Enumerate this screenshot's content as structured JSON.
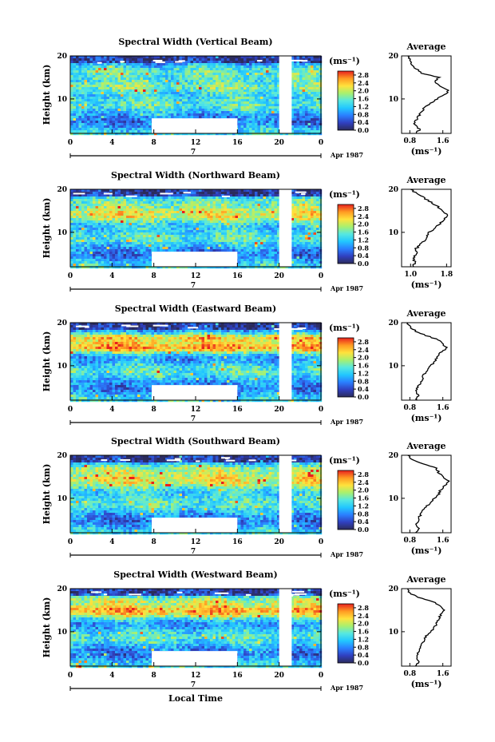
{
  "figure": {
    "xlabel": "Local Time",
    "date_label": "Apr 1987",
    "day_label": "7",
    "ylabel": "Height (km)",
    "unit": "(ms⁻¹)",
    "average_title": "Average",
    "average_xlabel": "(ms⁻¹)"
  },
  "colorbar": {
    "ticks": [
      "2.8",
      "2.4",
      "2.0",
      "1.6",
      "1.2",
      "0.8",
      "0.4",
      "0.0"
    ],
    "stops": [
      "#2b2b5b",
      "#3040c0",
      "#2a7fff",
      "#22c7ff",
      "#56e8e0",
      "#a9f06e",
      "#ffe23c",
      "#ff9a22",
      "#e8201e"
    ]
  },
  "chart_data": [
    {
      "type": "heatmap",
      "title": "Spectral Width (Vertical Beam)",
      "x_ticks": [
        "0",
        "4",
        "8",
        "12",
        "16",
        "20",
        "0"
      ],
      "y_ticks": [
        "20",
        "10"
      ],
      "xlim": [
        0,
        24
      ],
      "ylim": [
        2,
        20
      ],
      "colorbar_range": [
        0.0,
        3.0
      ],
      "data_gaps": [
        {
          "x": [
            20.0,
            21.2
          ],
          "y": [
            2,
            20
          ]
        },
        {
          "x": [
            7.8,
            16.0
          ],
          "y": [
            2,
            5.5
          ]
        }
      ],
      "bands": [
        {
          "center_km": 12.5,
          "width_km": 1.6,
          "peak_ms": 2.0
        },
        {
          "center_km": 17.0,
          "width_km": 0.8,
          "peak_ms": 1.3
        }
      ],
      "average": {
        "x_ticks": [
          "0.8",
          "1.6"
        ],
        "y_ticks": [
          "20",
          "10"
        ],
        "xlim": [
          0.6,
          1.8
        ],
        "ylim": [
          2,
          20
        ],
        "height_km": [
          2,
          3,
          4,
          5,
          6,
          7,
          8,
          9,
          10,
          11,
          12,
          13,
          14,
          15,
          16,
          17,
          18,
          19,
          20
        ],
        "width_ms": [
          0.95,
          1.05,
          0.9,
          0.95,
          1.0,
          1.1,
          1.15,
          1.3,
          1.45,
          1.65,
          1.75,
          1.55,
          1.4,
          1.5,
          1.1,
          0.95,
          0.85,
          0.8,
          0.75
        ]
      }
    },
    {
      "type": "heatmap",
      "title": "Spectral Width (Northward Beam)",
      "x_ticks": [
        "0",
        "4",
        "8",
        "12",
        "16",
        "20",
        "0"
      ],
      "y_ticks": [
        "20",
        "10"
      ],
      "xlim": [
        0,
        24
      ],
      "ylim": [
        2,
        20
      ],
      "colorbar_range": [
        0.0,
        3.0
      ],
      "data_gaps": [
        {
          "x": [
            20.0,
            21.2
          ],
          "y": [
            2,
            20
          ]
        },
        {
          "x": [
            7.8,
            16.0
          ],
          "y": [
            2,
            5.5
          ]
        }
      ],
      "bands": [
        {
          "center_km": 13.5,
          "width_km": 2.0,
          "peak_ms": 2.2
        },
        {
          "center_km": 17.5,
          "width_km": 1.0,
          "peak_ms": 1.5
        }
      ],
      "average": {
        "x_ticks": [
          "1.0",
          "1.8"
        ],
        "y_ticks": [
          "20",
          "10"
        ],
        "xlim": [
          0.8,
          1.9
        ],
        "ylim": [
          2,
          20
        ],
        "height_km": [
          2,
          3,
          4,
          5,
          6,
          7,
          8,
          9,
          10,
          11,
          12,
          13,
          14,
          15,
          16,
          17,
          18,
          19,
          20
        ],
        "width_ms": [
          1.05,
          1.1,
          1.05,
          1.15,
          1.1,
          1.2,
          1.3,
          1.35,
          1.4,
          1.55,
          1.65,
          1.75,
          1.85,
          1.7,
          1.6,
          1.45,
          1.3,
          1.15,
          1.0
        ]
      }
    },
    {
      "type": "heatmap",
      "title": "Spectral Width (Eastward Beam)",
      "x_ticks": [
        "0",
        "4",
        "8",
        "12",
        "16",
        "20",
        "0"
      ],
      "y_ticks": [
        "20",
        "10"
      ],
      "xlim": [
        0,
        24
      ],
      "ylim": [
        2,
        20
      ],
      "colorbar_range": [
        0.0,
        3.0
      ],
      "data_gaps": [
        {
          "x": [
            20.0,
            21.2
          ],
          "y": [
            2,
            20
          ]
        },
        {
          "x": [
            7.8,
            16.0
          ],
          "y": [
            2,
            5.5
          ]
        }
      ],
      "bands": [
        {
          "center_km": 14.0,
          "width_km": 1.4,
          "peak_ms": 2.5
        },
        {
          "center_km": 16.5,
          "width_km": 1.0,
          "peak_ms": 2.0
        }
      ],
      "average": {
        "x_ticks": [
          "0.8",
          "1.6"
        ],
        "y_ticks": [
          "20",
          "10"
        ],
        "xlim": [
          0.6,
          1.8
        ],
        "ylim": [
          2,
          20
        ],
        "height_km": [
          2,
          3,
          4,
          5,
          6,
          7,
          8,
          9,
          10,
          11,
          12,
          13,
          14,
          15,
          16,
          17,
          18,
          19,
          20
        ],
        "width_ms": [
          0.95,
          1.0,
          0.95,
          1.0,
          1.05,
          1.1,
          1.15,
          1.25,
          1.3,
          1.4,
          1.45,
          1.55,
          1.7,
          1.6,
          1.5,
          1.2,
          0.95,
          0.8,
          0.75
        ]
      }
    },
    {
      "type": "heatmap",
      "title": "Spectral Width (Southward Beam)",
      "x_ticks": [
        "0",
        "4",
        "8",
        "12",
        "16",
        "20",
        "0"
      ],
      "y_ticks": [
        "20",
        "10"
      ],
      "xlim": [
        0,
        24
      ],
      "ylim": [
        2,
        20
      ],
      "colorbar_range": [
        0.0,
        3.0
      ],
      "data_gaps": [
        {
          "x": [
            20.0,
            21.2
          ],
          "y": [
            2,
            20
          ]
        },
        {
          "x": [
            7.8,
            16.0
          ],
          "y": [
            2,
            5.5
          ]
        }
      ],
      "bands": [
        {
          "center_km": 13.5,
          "width_km": 2.2,
          "peak_ms": 2.2
        },
        {
          "center_km": 17.0,
          "width_km": 1.0,
          "peak_ms": 1.6
        }
      ],
      "average": {
        "x_ticks": [
          "0.8",
          "1.6"
        ],
        "y_ticks": [
          "20",
          "10"
        ],
        "xlim": [
          0.6,
          1.8
        ],
        "ylim": [
          2,
          20
        ],
        "height_km": [
          2,
          3,
          4,
          5,
          6,
          7,
          8,
          9,
          10,
          11,
          12,
          13,
          14,
          15,
          16,
          17,
          18,
          19,
          20
        ],
        "width_ms": [
          0.95,
          1.0,
          0.95,
          1.0,
          1.05,
          1.1,
          1.2,
          1.3,
          1.4,
          1.5,
          1.55,
          1.65,
          1.75,
          1.6,
          1.5,
          1.45,
          1.1,
          0.85,
          0.75
        ]
      }
    },
    {
      "type": "heatmap",
      "title": "Spectral Width (Westward Beam)",
      "x_ticks": [
        "0",
        "4",
        "8",
        "12",
        "16",
        "20",
        "0"
      ],
      "y_ticks": [
        "20",
        "10"
      ],
      "xlim": [
        0,
        24
      ],
      "ylim": [
        2,
        20
      ],
      "colorbar_range": [
        0.0,
        3.0
      ],
      "data_gaps": [
        {
          "x": [
            20.0,
            21.2
          ],
          "y": [
            2,
            20
          ]
        },
        {
          "x": [
            7.8,
            16.0
          ],
          "y": [
            2,
            5.5
          ]
        }
      ],
      "bands": [
        {
          "center_km": 14.5,
          "width_km": 1.8,
          "peak_ms": 2.3
        },
        {
          "center_km": 17.5,
          "width_km": 1.0,
          "peak_ms": 1.8
        }
      ],
      "average": {
        "x_ticks": [
          "0.8",
          "1.6"
        ],
        "y_ticks": [
          "20",
          "10"
        ],
        "xlim": [
          0.6,
          1.8
        ],
        "ylim": [
          2,
          20
        ],
        "height_km": [
          2,
          3,
          4,
          5,
          6,
          7,
          8,
          9,
          10,
          11,
          12,
          13,
          14,
          15,
          16,
          17,
          18,
          19,
          20
        ],
        "width_ms": [
          0.95,
          1.0,
          0.95,
          1.0,
          1.05,
          1.1,
          1.15,
          1.2,
          1.3,
          1.4,
          1.45,
          1.5,
          1.55,
          1.65,
          1.55,
          1.35,
          1.0,
          0.8,
          0.75
        ]
      }
    }
  ]
}
